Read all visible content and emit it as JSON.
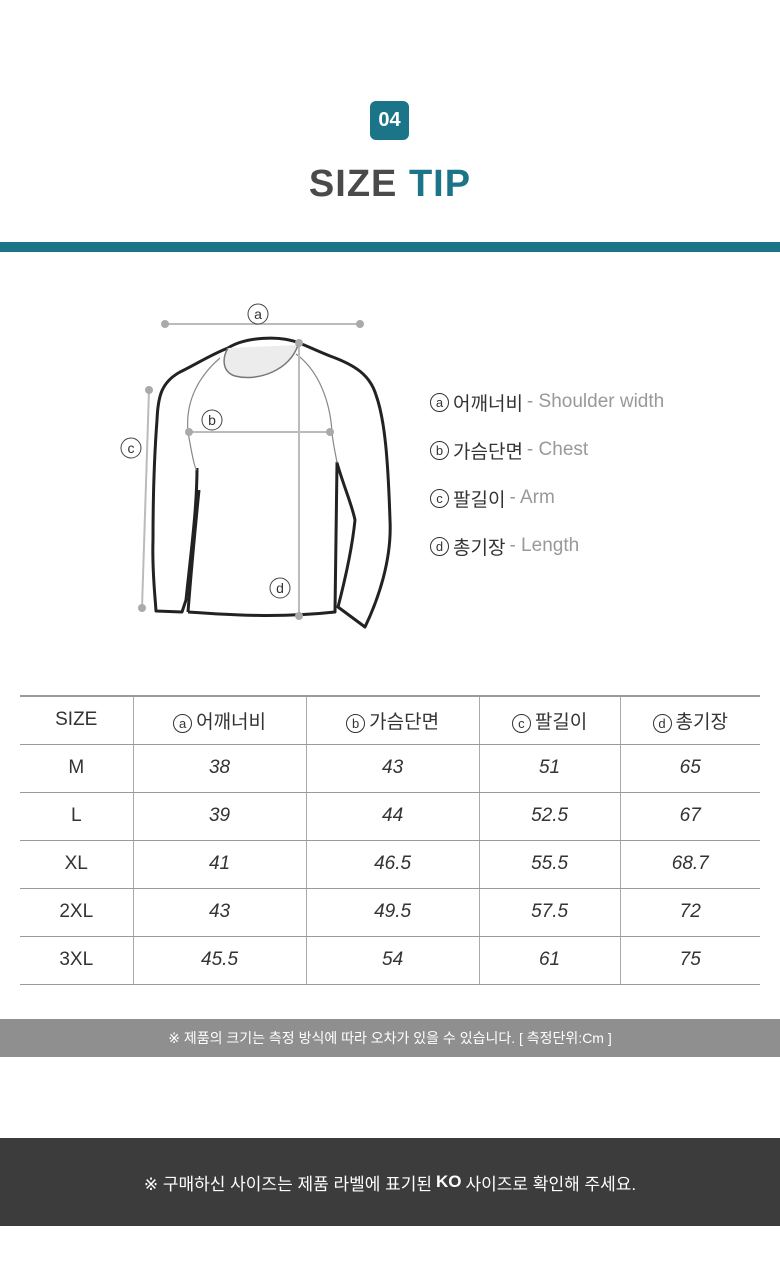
{
  "header": {
    "badge": "04",
    "title_main": "SIZE",
    "title_accent": "TIP",
    "accent_color": "#1b7488"
  },
  "diagram": {
    "labels": [
      "a",
      "b",
      "c",
      "d"
    ]
  },
  "legend": [
    {
      "mark": "a",
      "ko": "어깨너비",
      "en": "- Shoulder width"
    },
    {
      "mark": "b",
      "ko": "가슴단면",
      "en": "- Chest"
    },
    {
      "mark": "c",
      "ko": "팔길이",
      "en": "- Arm"
    },
    {
      "mark": "d",
      "ko": "총기장",
      "en": "- Length"
    }
  ],
  "table": {
    "headers": [
      {
        "mark": "",
        "label": "SIZE"
      },
      {
        "mark": "a",
        "label": "어깨너비"
      },
      {
        "mark": "b",
        "label": "가슴단면"
      },
      {
        "mark": "c",
        "label": "팔길이"
      },
      {
        "mark": "d",
        "label": "총기장"
      }
    ],
    "rows": [
      [
        "M",
        "38",
        "43",
        "51",
        "65"
      ],
      [
        "L",
        "39",
        "44",
        "52.5",
        "67"
      ],
      [
        "XL",
        "41",
        "46.5",
        "55.5",
        "68.7"
      ],
      [
        "2XL",
        "43",
        "49.5",
        "57.5",
        "72"
      ],
      [
        "3XL",
        "45.5",
        "54",
        "61",
        "75"
      ]
    ]
  },
  "notes": {
    "measurement": "※ 제품의 크기는 측정 방식에 따라 오차가 있을 수 있습니다. [ 측정단위:Cm ]",
    "label_pre": "※ 구매하신 사이즈는 제품 라벨에 표기된",
    "label_bold": "KO",
    "label_post": "사이즈로 확인해 주세요."
  }
}
